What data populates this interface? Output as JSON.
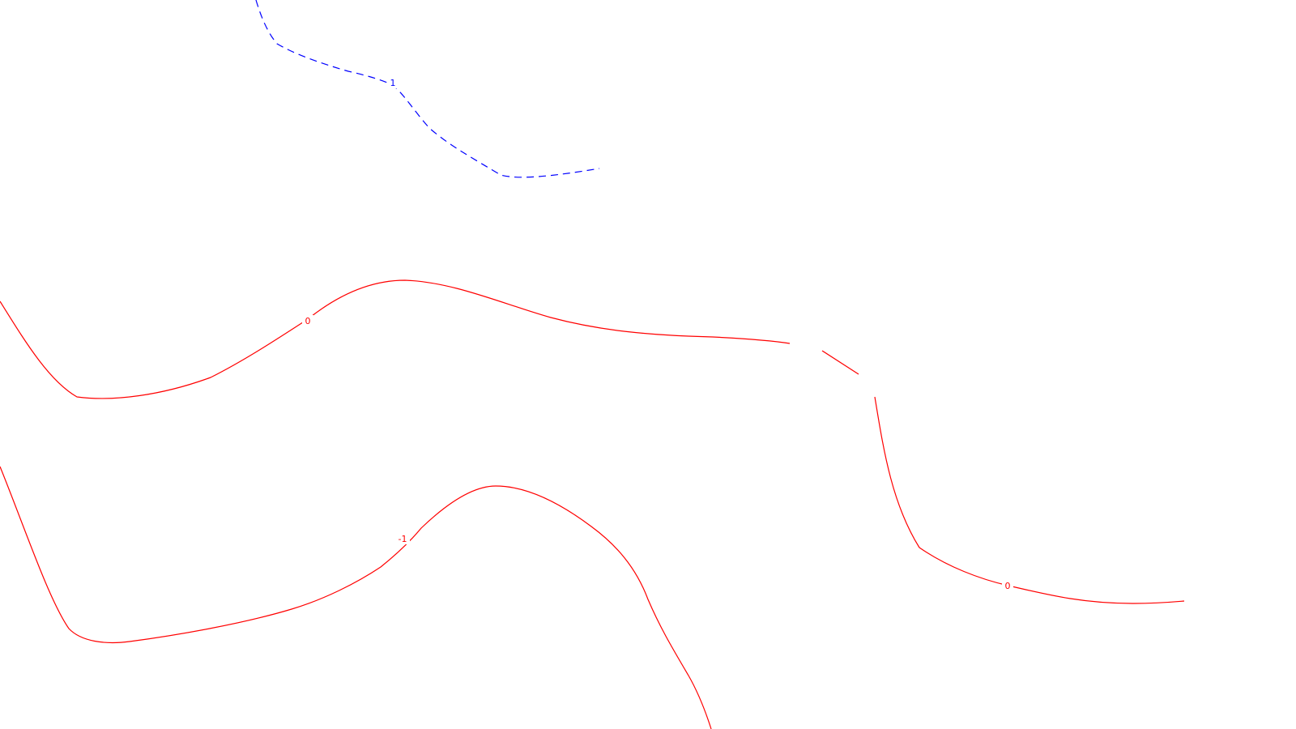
{
  "contour_map": {
    "contours": [
      {
        "id": "blue-dashed",
        "level_label": "1",
        "color": "#0000ff",
        "style": "dashed"
      },
      {
        "id": "red-upper",
        "level_label": "0",
        "color": "#ff0000",
        "style": "solid"
      },
      {
        "id": "red-right",
        "level_label": "0",
        "color": "#ff0000",
        "style": "solid"
      },
      {
        "id": "red-lower",
        "level_label": "-1",
        "color": "#ff0000",
        "style": "solid"
      }
    ]
  }
}
